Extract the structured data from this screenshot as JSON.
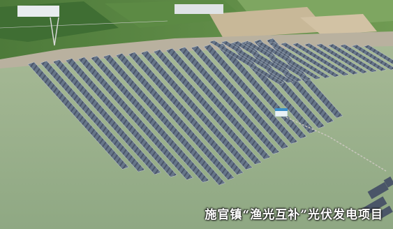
{
  "scene": {
    "description_name": "floating-solar-farm-aerial"
  },
  "caption": {
    "text": "施官镇“渔光互补”光伏发电项目"
  },
  "colors": {
    "water": "#9ab28d",
    "water_dark": "#86a07b",
    "farmland": "#5b8a45",
    "panel": "#5e6d82",
    "panel_dark": "#3d4657",
    "bank": "#b9b19f"
  }
}
